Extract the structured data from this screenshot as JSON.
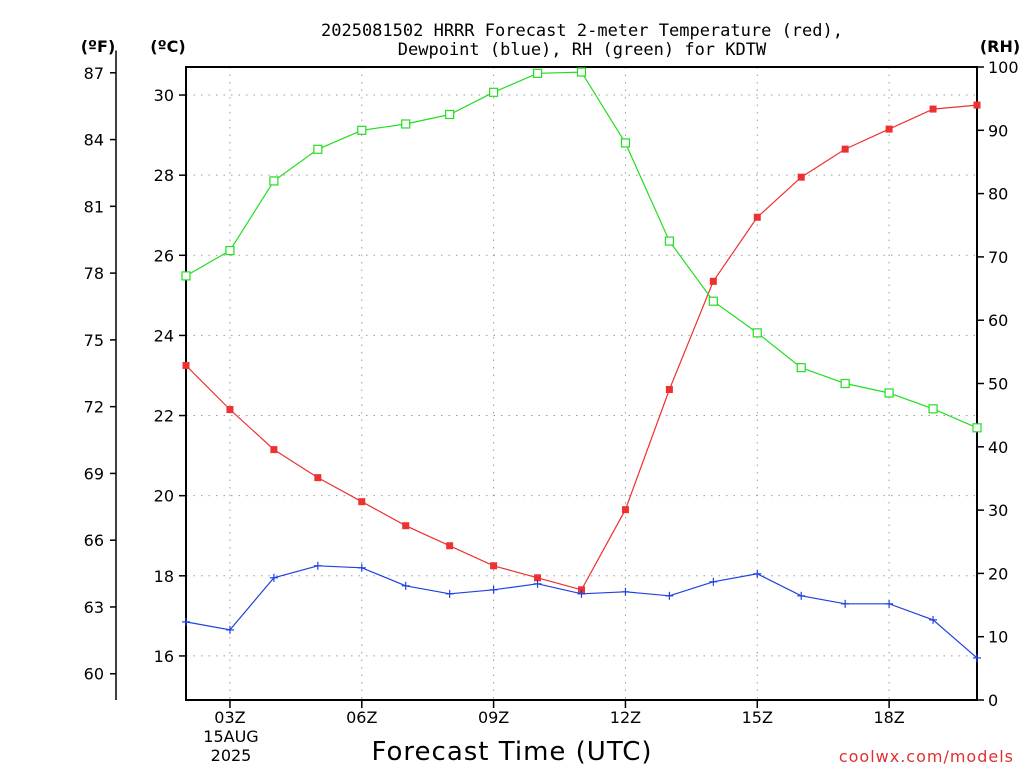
{
  "chart_data": {
    "type": "line",
    "title_line1": "2025081502 HRRR Forecast 2-meter Temperature (red),",
    "title_line2": "Dewpoint (blue), RH (green) for KDTW",
    "unit_f": "(ºF)",
    "unit_c": "(ºC)",
    "unit_rh": "(RH)",
    "xlabel": "Forecast Time (UTC)",
    "credit": "coolwx.com/models",
    "date_label_day": "15AUG",
    "date_label_year": "2025",
    "grid": true,
    "x_hours": [
      2,
      3,
      4,
      5,
      6,
      7,
      8,
      9,
      10,
      11,
      12,
      13,
      14,
      15,
      16,
      17,
      18,
      19,
      20
    ],
    "x_ticks": [
      3,
      6,
      9,
      12,
      15,
      18
    ],
    "x_tick_labels": [
      "03Z",
      "06Z",
      "09Z",
      "12Z",
      "15Z",
      "18Z"
    ],
    "x_range": [
      2,
      20
    ],
    "celsius_range": [
      14.9,
      30.7
    ],
    "celsius_ticks": [
      16,
      18,
      20,
      22,
      24,
      26,
      28,
      30
    ],
    "fahrenheit_ticks": [
      60,
      63,
      66,
      69,
      72,
      75,
      78,
      81,
      84,
      87
    ],
    "rh_range": [
      0,
      100
    ],
    "rh_ticks": [
      0,
      10,
      20,
      30,
      40,
      50,
      60,
      70,
      80,
      90,
      100
    ],
    "colors": {
      "temperature": "#ee3030",
      "dewpoint": "#2040e0",
      "rh": "#22dd22"
    },
    "series": [
      {
        "name": "Temperature",
        "axis": "celsius",
        "color_key": "temperature",
        "marker": "filled-square",
        "values": [
          23.25,
          22.15,
          21.15,
          20.45,
          19.85,
          19.25,
          18.75,
          18.25,
          17.95,
          17.65,
          19.65,
          22.65,
          25.35,
          26.95,
          27.95,
          28.65,
          29.15,
          29.65,
          29.75
        ]
      },
      {
        "name": "Dewpoint",
        "axis": "celsius",
        "color_key": "dewpoint",
        "marker": "plus",
        "values": [
          16.85,
          16.65,
          17.95,
          18.25,
          18.2,
          17.75,
          17.55,
          17.65,
          17.8,
          17.55,
          17.6,
          17.5,
          17.85,
          18.05,
          17.5,
          17.3,
          17.3,
          16.9,
          15.95
        ]
      },
      {
        "name": "RH",
        "axis": "rh",
        "color_key": "rh",
        "marker": "open-square",
        "values": [
          67,
          71,
          82,
          87,
          90,
          91,
          92.5,
          96,
          99,
          99.2,
          88,
          72.5,
          63,
          58,
          52.5,
          50,
          48.5,
          46,
          43
        ]
      }
    ]
  }
}
